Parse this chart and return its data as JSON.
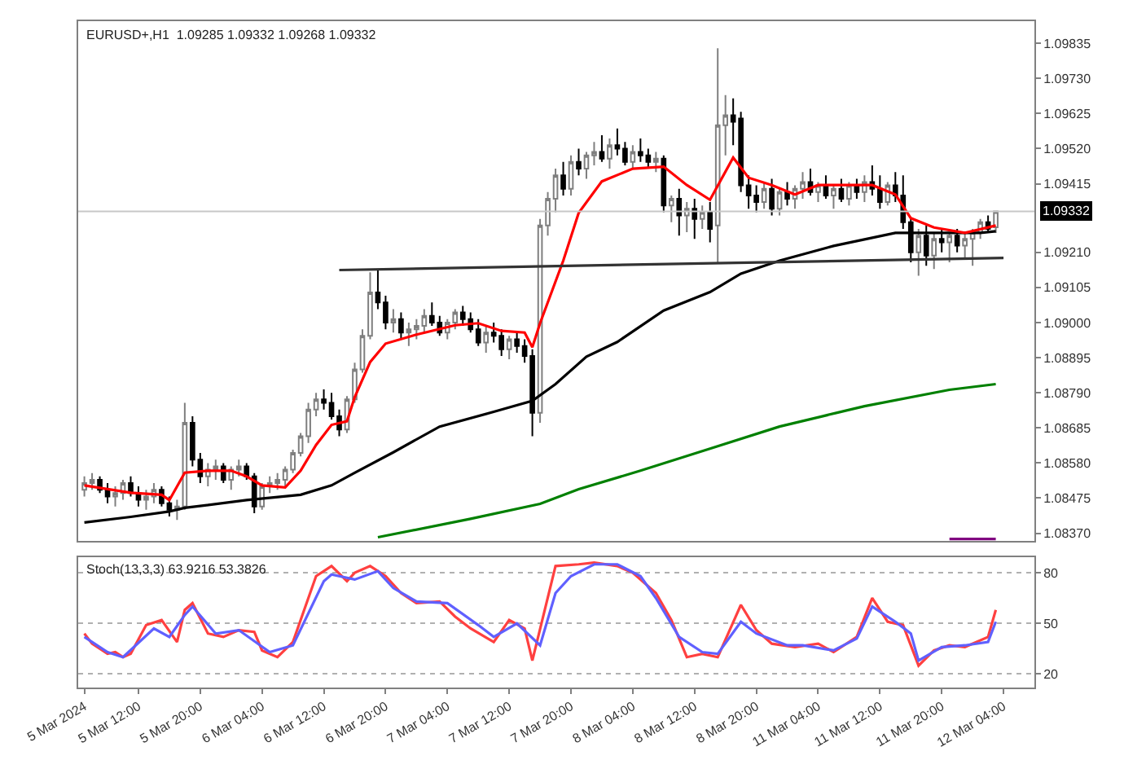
{
  "chart_data": [
    {
      "type": "candlestick",
      "title": "EURUSD+,H1  1.09285 1.09332 1.09268 1.09332",
      "categories": [
        null,
        null,
        null,
        null,
        null,
        null,
        null,
        null,
        null,
        null,
        null,
        null,
        null,
        null,
        null,
        null,
        null,
        null,
        null,
        null,
        null,
        null,
        null,
        null,
        null,
        null,
        null,
        null,
        null,
        null,
        null,
        null,
        null,
        null,
        null,
        null,
        null,
        null,
        null,
        null,
        null,
        null,
        null,
        null,
        null,
        null,
        null,
        null,
        null,
        null,
        null,
        null,
        null,
        null,
        null,
        null,
        null,
        null,
        null,
        null,
        null,
        null,
        null,
        null,
        null,
        null,
        null,
        null,
        null,
        null,
        null,
        null,
        null,
        null,
        null,
        null,
        null,
        null,
        null,
        null,
        null,
        null,
        null,
        null,
        null,
        null,
        null,
        null,
        null,
        null,
        null,
        null,
        null,
        null,
        null,
        null,
        null,
        null,
        null,
        null,
        null,
        null,
        null,
        null,
        null,
        null,
        null,
        null,
        null,
        null,
        null,
        null,
        null,
        null,
        null,
        null,
        null,
        null,
        null,
        null
      ],
      "ohlc": [
        [
          1.085,
          1.0854,
          1.0848,
          1.0852
        ],
        [
          1.0852,
          1.0855,
          1.085,
          1.0853
        ],
        [
          1.0853,
          1.0854,
          1.0849,
          1.085
        ],
        [
          1.085,
          1.0852,
          1.0846,
          1.0848
        ],
        [
          1.0848,
          1.0851,
          1.0845,
          1.0849
        ],
        [
          1.0849,
          1.0853,
          1.0847,
          1.0852
        ],
        [
          1.0852,
          1.0854,
          1.0848,
          1.0849
        ],
        [
          1.0849,
          1.0851,
          1.0845,
          1.0847
        ],
        [
          1.0847,
          1.085,
          1.0844,
          1.0848
        ],
        [
          1.0848,
          1.0852,
          1.0846,
          1.085
        ],
        [
          1.085,
          1.0851,
          1.0845,
          1.0846
        ],
        [
          1.0846,
          1.0848,
          1.0842,
          1.0844
        ],
        [
          1.0844,
          1.0847,
          1.0841,
          1.0845
        ],
        [
          1.0845,
          1.0876,
          1.0844,
          1.087
        ],
        [
          1.087,
          1.0872,
          1.0857,
          1.0859
        ],
        [
          1.0859,
          1.0861,
          1.0852,
          1.0854
        ],
        [
          1.0854,
          1.0858,
          1.0851,
          1.0856
        ],
        [
          1.0856,
          1.0859,
          1.0853,
          1.0857
        ],
        [
          1.0857,
          1.0858,
          1.0852,
          1.0853
        ],
        [
          1.0853,
          1.0857,
          1.085,
          1.0856
        ],
        [
          1.0856,
          1.0859,
          1.0854,
          1.0857
        ],
        [
          1.0857,
          1.0858,
          1.0853,
          1.0854
        ],
        [
          1.0854,
          1.0855,
          1.0843,
          1.0845
        ],
        [
          1.0845,
          1.0852,
          1.0844,
          1.0851
        ],
        [
          1.0851,
          1.0854,
          1.0849,
          1.0852
        ],
        [
          1.0852,
          1.0855,
          1.085,
          1.0853
        ],
        [
          1.0853,
          1.0857,
          1.0851,
          1.0856
        ],
        [
          1.0856,
          1.0862,
          1.0855,
          1.0861
        ],
        [
          1.0861,
          1.0867,
          1.086,
          1.0866
        ],
        [
          1.0866,
          1.0876,
          1.0864,
          1.0874
        ],
        [
          1.0874,
          1.0879,
          1.0872,
          1.0877
        ],
        [
          1.0877,
          1.088,
          1.0874,
          1.0876
        ],
        [
          1.0876,
          1.0879,
          1.0871,
          1.0872
        ],
        [
          1.0872,
          1.0874,
          1.0866,
          1.0868
        ],
        [
          1.0868,
          1.0878,
          1.0867,
          1.0877
        ],
        [
          1.0877,
          1.0888,
          1.0876,
          1.0886
        ],
        [
          1.0886,
          1.0898,
          1.0885,
          1.0896
        ],
        [
          1.0896,
          1.0915,
          1.0895,
          1.0909
        ],
        [
          1.0909,
          1.0916,
          1.0904,
          1.0906
        ],
        [
          1.0906,
          1.0908,
          1.0898,
          1.09
        ],
        [
          1.09,
          1.0904,
          1.0897,
          1.0901
        ],
        [
          1.0901,
          1.0903,
          1.0895,
          1.0897
        ],
        [
          1.0897,
          1.09,
          1.0893,
          1.0898
        ],
        [
          1.0898,
          1.0901,
          1.0895,
          1.0899
        ],
        [
          1.0899,
          1.0904,
          1.0897,
          1.0902
        ],
        [
          1.0902,
          1.0906,
          1.0899,
          1.09
        ],
        [
          1.09,
          1.0902,
          1.0896,
          1.0897
        ],
        [
          1.0897,
          1.0901,
          1.0895,
          1.09
        ],
        [
          1.09,
          1.0904,
          1.0898,
          1.0903
        ],
        [
          1.0903,
          1.0905,
          1.0899,
          1.0901
        ],
        [
          1.0901,
          1.0903,
          1.0897,
          1.0898
        ],
        [
          1.0898,
          1.0901,
          1.0893,
          1.0894
        ],
        [
          1.0894,
          1.0899,
          1.0891,
          1.0897
        ],
        [
          1.0897,
          1.09,
          1.0894,
          1.0896
        ],
        [
          1.0896,
          1.0898,
          1.089,
          1.0892
        ],
        [
          1.0892,
          1.0896,
          1.0889,
          1.0895
        ],
        [
          1.0895,
          1.0897,
          1.0891,
          1.0893
        ],
        [
          1.0893,
          1.0895,
          1.0888,
          1.089
        ],
        [
          1.089,
          1.0892,
          1.0866,
          1.0873
        ],
        [
          1.0873,
          1.0931,
          1.087,
          1.0929
        ],
        [
          1.0929,
          1.0939,
          1.0926,
          1.0937
        ],
        [
          1.0937,
          1.0946,
          1.0933,
          1.0944
        ],
        [
          1.0944,
          1.0948,
          1.0938,
          1.094
        ],
        [
          1.094,
          1.095,
          1.0938,
          1.0948
        ],
        [
          1.0948,
          1.0952,
          1.0944,
          1.0946
        ],
        [
          1.0946,
          1.0951,
          1.0943,
          1.095
        ],
        [
          1.095,
          1.0954,
          1.0947,
          1.0951
        ],
        [
          1.0951,
          1.0956,
          1.0948,
          1.0949
        ],
        [
          1.0949,
          1.0955,
          1.0946,
          1.0953
        ],
        [
          1.0953,
          1.0958,
          1.095,
          1.0952
        ],
        [
          1.0952,
          1.0954,
          1.0947,
          1.0948
        ],
        [
          1.0948,
          1.0953,
          1.0946,
          1.0951
        ],
        [
          1.0951,
          1.0955,
          1.0948,
          1.095
        ],
        [
          1.095,
          1.0952,
          1.0946,
          1.0948
        ],
        [
          1.0948,
          1.0951,
          1.0945,
          1.0949
        ],
        [
          1.0949,
          1.095,
          1.0933,
          1.0935
        ],
        [
          1.0935,
          1.0938,
          1.093,
          1.0937
        ],
        [
          1.0937,
          1.094,
          1.0926,
          1.0932
        ],
        [
          1.0932,
          1.0936,
          1.0927,
          1.0934
        ],
        [
          1.0934,
          1.0937,
          1.0925,
          1.0931
        ],
        [
          1.0931,
          1.0935,
          1.0928,
          1.0933
        ],
        [
          1.0933,
          1.0936,
          1.0924,
          1.0928
        ],
        [
          1.0929,
          1.0982,
          1.0918,
          1.0959
        ],
        [
          1.0959,
          1.0968,
          1.095,
          1.0962
        ],
        [
          1.0962,
          1.0967,
          1.0953,
          1.096
        ],
        [
          1.0961,
          1.0963,
          1.0939,
          1.0941
        ],
        [
          1.0941,
          1.0944,
          1.0934,
          1.0938
        ],
        [
          1.0938,
          1.0941,
          1.0933,
          1.0936
        ],
        [
          1.0936,
          1.0942,
          1.0934,
          1.094
        ],
        [
          1.094,
          1.0943,
          1.0932,
          1.0934
        ],
        [
          1.0934,
          1.094,
          1.0932,
          1.0939
        ],
        [
          1.0939,
          1.0942,
          1.0935,
          1.0937
        ],
        [
          1.0937,
          1.0941,
          1.0934,
          1.094
        ],
        [
          1.094,
          1.0945,
          1.0937,
          1.0942
        ],
        [
          1.0942,
          1.0946,
          1.0938,
          1.0939
        ],
        [
          1.0939,
          1.0942,
          1.0936,
          1.0941
        ],
        [
          1.0941,
          1.0944,
          1.0937,
          1.0938
        ],
        [
          1.0938,
          1.0941,
          1.0934,
          1.094
        ],
        [
          1.094,
          1.0943,
          1.0936,
          1.0937
        ],
        [
          1.0937,
          1.0942,
          1.0935,
          1.0941
        ],
        [
          1.0941,
          1.0943,
          1.0937,
          1.0939
        ],
        [
          1.0939,
          1.0944,
          1.0936,
          1.0942
        ],
        [
          1.0942,
          1.0947,
          1.0938,
          1.094
        ],
        [
          1.094,
          1.0944,
          1.0934,
          1.0936
        ],
        [
          1.0936,
          1.0942,
          1.0935,
          1.0941
        ],
        [
          1.0941,
          1.0945,
          1.0936,
          1.0938
        ],
        [
          1.0938,
          1.0944,
          1.0928,
          1.093
        ],
        [
          1.093,
          1.0931,
          1.0918,
          1.0921
        ],
        [
          1.0921,
          1.0928,
          1.0914,
          1.0926
        ],
        [
          1.0926,
          1.0929,
          1.0917,
          1.092
        ],
        [
          1.092,
          1.0927,
          1.0916,
          1.0925
        ],
        [
          1.0925,
          1.0928,
          1.0921,
          1.0924
        ],
        [
          1.0924,
          1.0927,
          1.0918,
          1.0926
        ],
        [
          1.0926,
          1.0928,
          1.0921,
          1.0923
        ],
        [
          1.0923,
          1.0927,
          1.0919,
          1.0925
        ],
        [
          1.0925,
          1.0928,
          1.0917,
          1.0927
        ],
        [
          1.0927,
          1.0931,
          1.0925,
          1.093
        ],
        [
          1.093,
          1.0932,
          1.0927,
          1.0928
        ],
        [
          1.09285,
          1.09332,
          1.09268,
          1.09332
        ],
        null
      ],
      "series": [
        {
          "type": "line",
          "color": "#000000",
          "values": [
            1.08402,
            null,
            null,
            null,
            null,
            null,
            1.08419,
            null,
            null,
            null,
            null,
            1.08435,
            null,
            1.08446,
            null,
            null,
            null,
            null,
            null,
            null,
            null,
            1.08469,
            null,
            null,
            null,
            null,
            null,
            null,
            1.08485,
            null,
            null,
            null,
            1.08513,
            null,
            null,
            1.08551,
            null,
            null,
            null,
            null,
            1.08612,
            null,
            null,
            null,
            null,
            null,
            1.08689,
            null,
            null,
            null,
            null,
            null,
            null,
            1.08733,
            null,
            null,
            null,
            null,
            1.08766,
            null,
            null,
            1.08816,
            null,
            null,
            null,
            1.08898,
            null,
            null,
            null,
            1.08942,
            null,
            null,
            null,
            null,
            null,
            1.09036,
            null,
            null,
            null,
            null,
            null,
            1.09091,
            null,
            null,
            null,
            1.09146,
            null,
            null,
            null,
            null,
            1.09185,
            null,
            null,
            null,
            null,
            null,
            null,
            1.09229,
            null,
            null,
            null,
            null,
            null,
            null,
            null,
            1.09268,
            null,
            1.09268,
            null,
            null,
            null,
            null,
            null,
            null,
            null,
            null,
            1.09268,
            null,
            1.09273,
            null
          ]
        },
        {
          "type": "line",
          "color": "#008000",
          "values": [
            null,
            null,
            null,
            null,
            null,
            null,
            null,
            null,
            null,
            null,
            null,
            null,
            null,
            null,
            null,
            null,
            null,
            null,
            null,
            null,
            null,
            null,
            null,
            null,
            null,
            null,
            null,
            null,
            null,
            null,
            null,
            null,
            null,
            null,
            null,
            null,
            null,
            null,
            1.08358,
            null,
            null,
            null,
            null,
            null,
            null,
            null,
            null,
            null,
            null,
            null,
            1.08413,
            null,
            null,
            null,
            null,
            null,
            null,
            null,
            null,
            1.08458,
            null,
            null,
            null,
            null,
            1.08502,
            null,
            null,
            null,
            null,
            null,
            null,
            null,
            1.08557,
            null,
            null,
            null,
            null,
            null,
            null,
            null,
            null,
            1.08623,
            null,
            null,
            null,
            null,
            null,
            null,
            null,
            null,
            1.08689,
            null,
            null,
            null,
            null,
            null,
            null,
            null,
            null,
            null,
            null,
            1.0875,
            null,
            null,
            null,
            null,
            null,
            null,
            null,
            null,
            null,
            null,
            1.08799,
            null,
            null,
            null,
            null,
            null,
            1.08816,
            null
          ]
        },
        {
          "type": "line",
          "color": "#ff0000",
          "values": [
            1.08513,
            null,
            null,
            1.08502,
            null,
            null,
            1.08491,
            null,
            null,
            null,
            1.08485,
            1.08469,
            null,
            1.08551,
            null,
            null,
            1.08557,
            null,
            null,
            1.08557,
            null,
            1.0854,
            null,
            1.08513,
            null,
            null,
            1.08507,
            null,
            1.08557,
            null,
            1.08634,
            null,
            1.08694,
            null,
            1.08705,
            1.08777,
            null,
            1.08882,
            null,
            1.08937,
            null,
            null,
            null,
            1.08964,
            null,
            null,
            null,
            null,
            1.08992,
            null,
            null,
            1.08998,
            null,
            null,
            1.08975,
            null,
            null,
            1.0897,
            1.08926,
            1.08998,
            null,
            null,
            1.09185,
            null,
            1.09328,
            null,
            null,
            1.09422,
            null,
            null,
            null,
            1.0946,
            null,
            null,
            null,
            1.09466,
            null,
            null,
            1.09411,
            null,
            null,
            1.09367,
            null,
            null,
            1.09493,
            null,
            1.09433,
            null,
            null,
            1.09411,
            null,
            null,
            1.09383,
            null,
            null,
            1.09411,
            null,
            null,
            null,
            null,
            1.09411,
            null,
            1.09411,
            null,
            null,
            1.09383,
            null,
            1.09312,
            null,
            null,
            1.09284,
            null,
            null,
            null,
            1.09268,
            null,
            null,
            null,
            1.0929,
            null
          ]
        },
        {
          "type": "line",
          "color": "#333333",
          "values": [
            null,
            null,
            null,
            null,
            null,
            null,
            null,
            null,
            null,
            null,
            null,
            null,
            null,
            null,
            null,
            null,
            null,
            null,
            null,
            null,
            null,
            null,
            null,
            null,
            null,
            null,
            null,
            null,
            null,
            null,
            null,
            null,
            null,
            1.09157,
            null,
            null,
            null,
            null,
            null,
            null,
            null,
            null,
            null,
            null,
            null,
            null,
            null,
            null,
            null,
            null,
            null,
            null,
            null,
            null,
            null,
            null,
            null,
            null,
            null,
            null,
            null,
            null,
            null,
            null,
            null,
            null,
            null,
            null,
            null,
            null,
            null,
            null,
            null,
            null,
            null,
            null,
            null,
            null,
            null,
            null,
            null,
            null,
            null,
            null,
            null,
            null,
            null,
            null,
            null,
            null,
            null,
            null,
            null,
            null,
            null,
            null,
            null,
            null,
            null,
            null,
            null,
            null,
            null,
            null,
            null,
            null,
            null,
            null,
            null,
            null,
            null,
            null,
            null,
            null,
            null,
            null,
            null,
            null,
            null,
            1.09193
          ]
        },
        {
          "type": "line",
          "color": "#800080",
          "values": [
            null,
            null,
            null,
            null,
            null,
            null,
            null,
            null,
            null,
            null,
            null,
            null,
            null,
            null,
            null,
            null,
            null,
            null,
            null,
            null,
            null,
            null,
            null,
            null,
            null,
            null,
            null,
            null,
            null,
            null,
            null,
            null,
            null,
            null,
            null,
            null,
            null,
            null,
            null,
            null,
            null,
            null,
            null,
            null,
            null,
            null,
            null,
            null,
            null,
            null,
            null,
            null,
            null,
            null,
            null,
            null,
            null,
            null,
            null,
            null,
            null,
            null,
            null,
            null,
            null,
            null,
            null,
            null,
            null,
            null,
            null,
            null,
            null,
            null,
            null,
            null,
            null,
            null,
            null,
            null,
            null,
            null,
            null,
            null,
            null,
            null,
            null,
            null,
            null,
            null,
            null,
            null,
            null,
            null,
            null,
            null,
            null,
            null,
            null,
            null,
            null,
            null,
            null,
            null,
            null,
            null,
            null,
            null,
            null,
            null,
            null,
            null,
            1.08353,
            null,
            null,
            null,
            null,
            null,
            1.08353,
            null
          ]
        }
      ],
      "ylim": [
        1.08347,
        1.09901
      ],
      "yticks": [
        {
          "value": 1.09835,
          "label": "1.09835"
        },
        {
          "value": 1.0973,
          "label": "1.09730"
        },
        {
          "value": 1.09625,
          "label": "1.09625"
        },
        {
          "value": 1.0952,
          "label": "1.09520"
        },
        {
          "value": 1.09415,
          "label": "1.09415"
        },
        {
          "value": 1.0921,
          "label": "1.09210"
        },
        {
          "value": 1.09105,
          "label": "1.09105"
        },
        {
          "value": 1.09,
          "label": "1.09000"
        },
        {
          "value": 1.08895,
          "label": "1.08895"
        },
        {
          "value": 1.0879,
          "label": "1.08790"
        },
        {
          "value": 1.08685,
          "label": "1.08685"
        },
        {
          "value": 1.0858,
          "label": "1.08580"
        },
        {
          "value": 1.08475,
          "label": "1.08475"
        },
        {
          "value": 1.0837,
          "label": "1.08370"
        }
      ],
      "ref_lines": [
        {
          "axis": "y",
          "value": 1.09332,
          "label": "1.09332",
          "color": "#c8c8c8"
        }
      ],
      "tick_labels": "y"
    },
    {
      "type": "line",
      "title": "Stoch(13,3,3) 63.9216 53.3826",
      "categories": [
        "5 Mar 2024",
        null,
        null,
        null,
        null,
        null,
        null,
        "5 Mar 12:00",
        null,
        null,
        null,
        null,
        null,
        null,
        null,
        "5 Mar 20:00",
        null,
        null,
        null,
        null,
        null,
        null,
        null,
        "6 Mar 04:00",
        null,
        null,
        null,
        null,
        null,
        null,
        null,
        "6 Mar 12:00",
        null,
        null,
        null,
        null,
        null,
        null,
        null,
        "6 Mar 20:00",
        null,
        null,
        null,
        null,
        null,
        null,
        null,
        "7 Mar 04:00",
        null,
        null,
        null,
        null,
        null,
        null,
        null,
        "7 Mar 12:00",
        null,
        null,
        null,
        null,
        null,
        null,
        null,
        "7 Mar 20:00",
        null,
        null,
        null,
        null,
        null,
        null,
        null,
        "8 Mar 04:00",
        null,
        null,
        null,
        null,
        null,
        null,
        null,
        "8 Mar 12:00",
        null,
        null,
        null,
        null,
        null,
        null,
        null,
        "8 Mar 20:00",
        null,
        null,
        null,
        null,
        null,
        null,
        null,
        "11 Mar 04:00",
        null,
        null,
        null,
        null,
        null,
        null,
        null,
        "11 Mar 12:00",
        null,
        null,
        null,
        null,
        null,
        null,
        null,
        "11 Mar 20:00",
        null,
        null,
        null,
        null,
        null,
        null,
        null,
        "12 Mar 04:00"
      ],
      "series": [
        {
          "color": "#ff4040",
          "values": [
            44,
            38,
            null,
            32,
            33,
            30,
            32,
            null,
            49,
            null,
            52,
            null,
            39,
            58,
            62,
            null,
            44,
            null,
            42,
            null,
            46,
            null,
            45,
            34,
            null,
            30,
            null,
            39,
            null,
            null,
            78,
            null,
            84,
            null,
            75,
            80,
            null,
            84,
            null,
            78,
            null,
            68,
            null,
            62,
            null,
            null,
            63,
            null,
            54,
            null,
            47,
            null,
            null,
            39,
            null,
            52,
            null,
            47,
            28,
            null,
            null,
            84,
            null,
            null,
            85,
            null,
            86,
            null,
            null,
            84,
            null,
            80,
            null,
            null,
            68,
            null,
            52,
            null,
            30,
            null,
            32,
            null,
            30,
            null,
            null,
            61,
            null,
            46,
            null,
            38,
            null,
            null,
            36,
            null,
            null,
            38,
            null,
            33,
            null,
            null,
            42,
            null,
            65,
            null,
            51,
            null,
            49,
            null,
            25,
            null,
            34,
            null,
            37,
            null,
            36,
            null,
            null,
            42,
            58,
            null
          ]
        },
        {
          "color": "#6060ff",
          "values": [
            42,
            null,
            null,
            33,
            null,
            30,
            null,
            null,
            null,
            47,
            null,
            42,
            null,
            55,
            60,
            null,
            null,
            44,
            null,
            null,
            46,
            null,
            null,
            null,
            33,
            null,
            null,
            37,
            null,
            null,
            null,
            75,
            79,
            null,
            null,
            76,
            null,
            null,
            81,
            null,
            71,
            null,
            null,
            63,
            null,
            null,
            null,
            62,
            null,
            null,
            null,
            49,
            null,
            42,
            null,
            null,
            50,
            null,
            null,
            37,
            null,
            68,
            null,
            78,
            null,
            null,
            85,
            null,
            null,
            85,
            null,
            null,
            78,
            null,
            65,
            null,
            null,
            42,
            null,
            null,
            33,
            null,
            32,
            null,
            null,
            51,
            null,
            44,
            null,
            null,
            null,
            37,
            null,
            37,
            null,
            null,
            null,
            34,
            null,
            null,
            41,
            null,
            60,
            null,
            null,
            51,
            null,
            44,
            28,
            null,
            null,
            36,
            null,
            null,
            37,
            null,
            null,
            39,
            51,
            null
          ]
        }
      ],
      "ylim": [
        12,
        89
      ],
      "yticks": [
        80,
        50,
        20
      ],
      "grid": "y"
    }
  ]
}
